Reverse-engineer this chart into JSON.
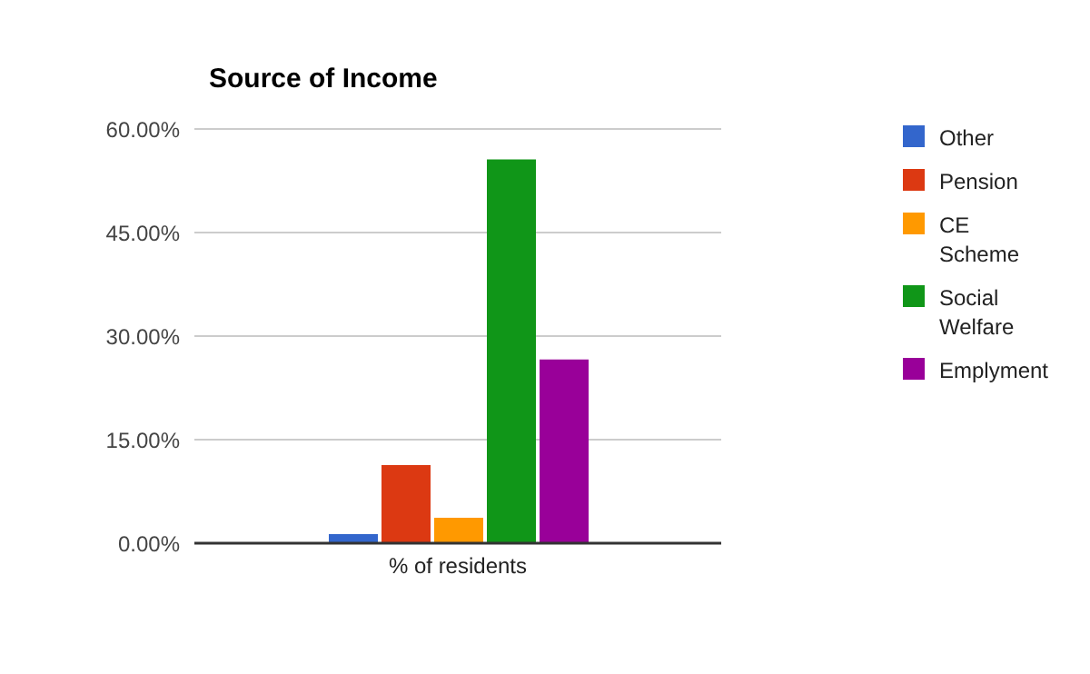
{
  "chart_data": {
    "type": "bar",
    "title": "Source of Income",
    "categories": [
      "% of residents"
    ],
    "series": [
      {
        "name": "Other",
        "color": "#3366cc",
        "values": [
          1.3
        ]
      },
      {
        "name": "Pension",
        "color": "#dc3912",
        "values": [
          11.3
        ]
      },
      {
        "name": "CE Scheme",
        "color": "#ff9900",
        "values": [
          3.7
        ]
      },
      {
        "name": "Social Welfare",
        "color": "#109618",
        "values": [
          55.6
        ]
      },
      {
        "name": "Emplyment",
        "color": "#990099",
        "values": [
          26.6
        ]
      }
    ],
    "ylim": [
      0,
      60
    ],
    "yticks": [
      {
        "value": 0,
        "label": "0.00%"
      },
      {
        "value": 15,
        "label": "15.00%"
      },
      {
        "value": 30,
        "label": "30.00%"
      },
      {
        "value": 45,
        "label": "45.00%"
      },
      {
        "value": 60,
        "label": "60.00%"
      }
    ],
    "grid": "y",
    "legend": "right"
  }
}
